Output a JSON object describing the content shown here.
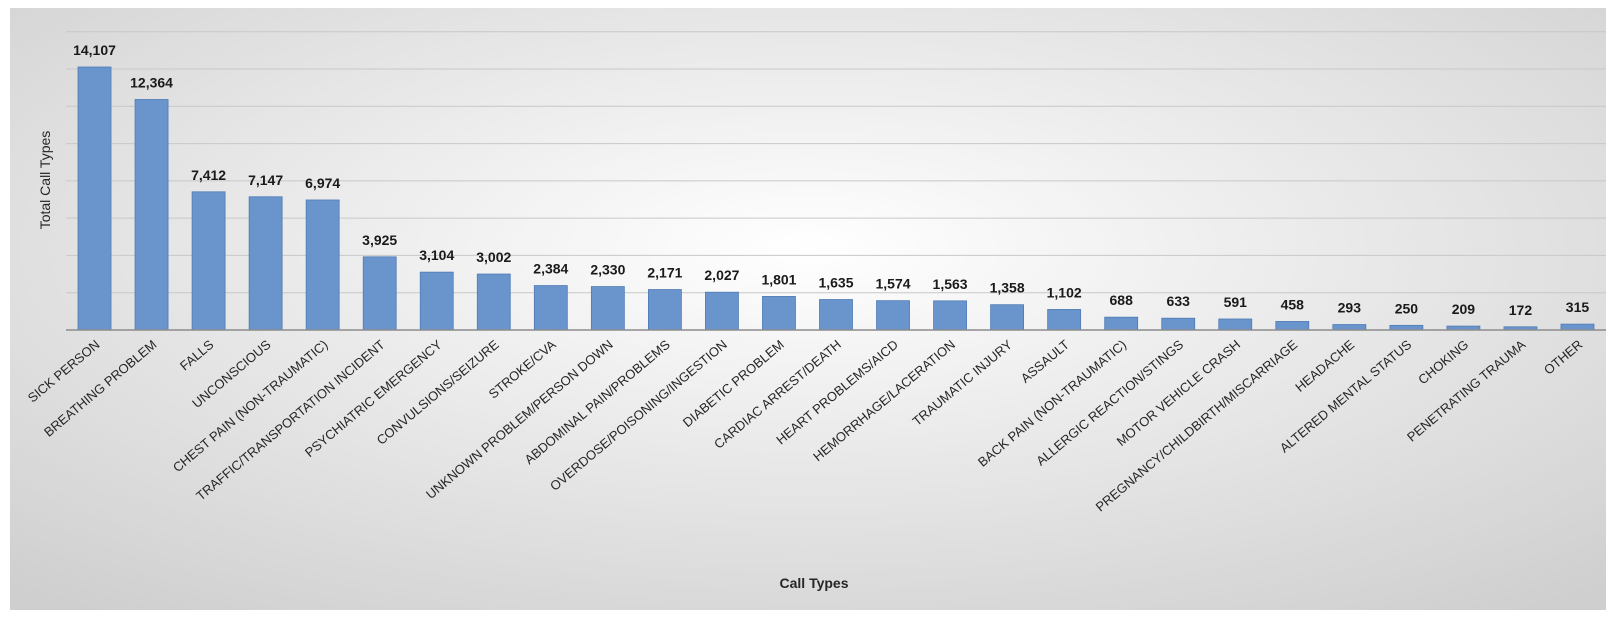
{
  "chart_data": {
    "type": "bar",
    "title": "",
    "xlabel": "Call Types",
    "ylabel": "Total Call Types",
    "ylim": [
      0,
      16000
    ],
    "grid": true,
    "legend": "none",
    "categories": [
      "SICK PERSON",
      "BREATHING PROBLEM",
      "FALLS",
      "UNCONSCIOUS",
      "CHEST PAIN (NON-TRAUMATIC)",
      "TRAFFIC/TRANSPORTATION INCIDENT",
      "PSYCHIATRIC EMERGENCY",
      "CONVULSIONS/SEIZURE",
      "STROKE/CVA",
      "UNKNOWN PROBLEM/PERSON DOWN",
      "ABDOMINAL PAIN/PROBLEMS",
      "OVERDOSE/POISONING/INGESTION",
      "DIABETIC PROBLEM",
      "CARDIAC ARREST/DEATH",
      "HEART PROBLEMS/AICD",
      "HEMORRHAGE/LACERATION",
      "TRAUMATIC INJURY",
      "ASSAULT",
      "BACK PAIN (NON-TRAUMATIC)",
      "ALLERGIC REACTION/STINGS",
      "MOTOR VEHICLE CRASH",
      "PREGNANCY/CHILDBIRTH/MISCARRIAGE",
      "HEADACHE",
      "ALTERED MENTAL STATUS",
      "CHOKING",
      "PENETRATING TRAUMA",
      "OTHER"
    ],
    "values": [
      14107,
      12364,
      7412,
      7147,
      6974,
      3925,
      3104,
      3002,
      2384,
      2330,
      2171,
      2027,
      1801,
      1635,
      1574,
      1563,
      1358,
      1102,
      688,
      633,
      591,
      458,
      293,
      250,
      209,
      172,
      315
    ],
    "data_labels": [
      "14,107",
      "12,364",
      "7,412",
      "7,147",
      "6,974",
      "3,925",
      "3,104",
      "3,002",
      "2,384",
      "2,330",
      "2,171",
      "2,027",
      "1,801",
      "1,635",
      "1,574",
      "1,563",
      "1,358",
      "1,102",
      "688",
      "633",
      "591",
      "458",
      "293",
      "250",
      "209",
      "172",
      "315"
    ],
    "colors": {
      "bar_fill": "#6a95cc",
      "bar_edge": "#4f7bb5",
      "grid": "#c8c8c8",
      "background_light": "#ffffff",
      "background_dark": "#cfcfcf"
    }
  }
}
